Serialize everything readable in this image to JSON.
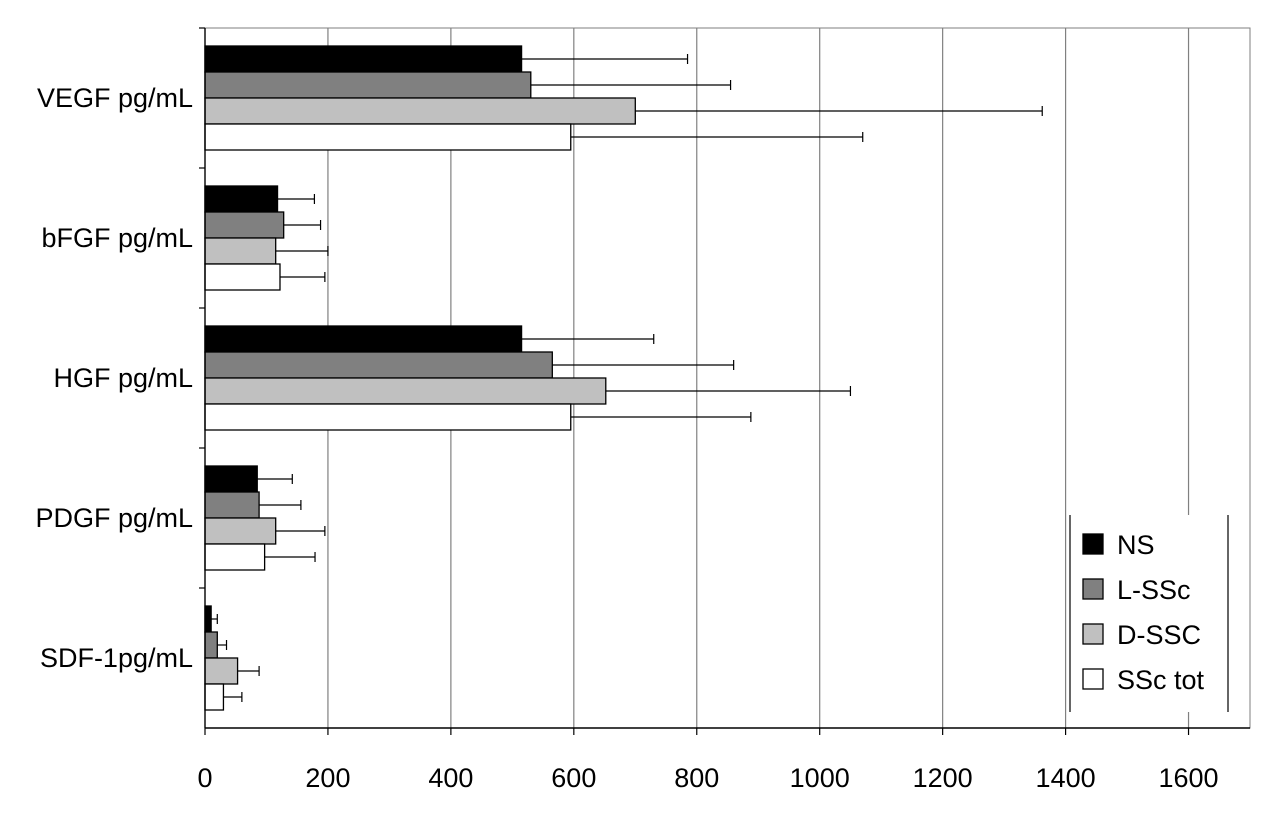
{
  "chart_data": {
    "type": "bar",
    "orientation": "horizontal",
    "categories": [
      "VEGF pg/mL",
      "bFGF pg/mL",
      "HGF pg/mL",
      "PDGF pg/mL",
      "SDF-1pg/mL"
    ],
    "series": [
      {
        "name": "NS",
        "color": "#000000",
        "values": [
          515,
          118,
          515,
          85,
          10
        ],
        "errors": [
          270,
          60,
          215,
          57,
          10
        ]
      },
      {
        "name": "L-SSc",
        "color": "#808080",
        "values": [
          530,
          128,
          565,
          88,
          20
        ],
        "errors": [
          325,
          60,
          295,
          68,
          15
        ]
      },
      {
        "name": "D-SSC",
        "color": "#c0c0c0",
        "values": [
          700,
          115,
          652,
          115,
          53
        ],
        "errors": [
          662,
          85,
          398,
          80,
          35
        ]
      },
      {
        "name": "SSc tot",
        "color": "#ffffff",
        "values": [
          595,
          122,
          595,
          97,
          30
        ],
        "errors": [
          475,
          73,
          293,
          82,
          30
        ]
      }
    ],
    "xlim": [
      0,
      1700
    ],
    "xticks": [
      "0",
      "200",
      "400",
      "600",
      "800",
      "1000",
      "1200",
      "1400",
      "1600"
    ],
    "grid": true,
    "legend_position": "bottom-right",
    "title": "",
    "xlabel": "",
    "ylabel": ""
  }
}
